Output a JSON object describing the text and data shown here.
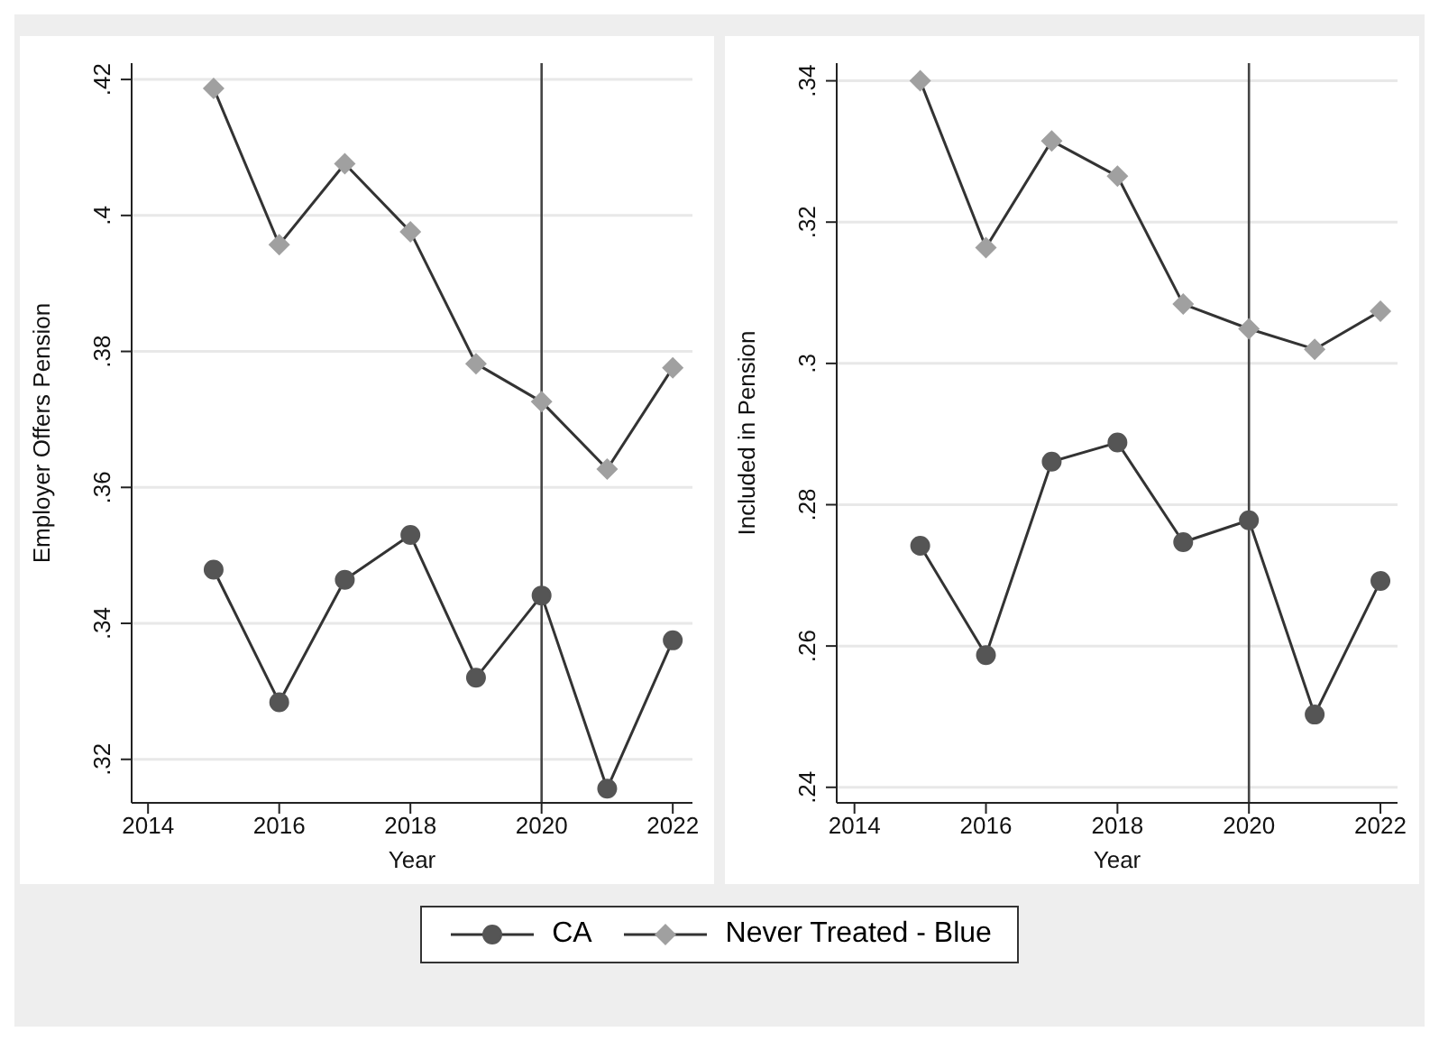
{
  "chart_data": [
    {
      "type": "line",
      "xlabel": "Year",
      "ylabel": "Employer Offers Pension",
      "x": [
        2015,
        2016,
        2017,
        2018,
        2019,
        2020,
        2021,
        2022
      ],
      "xlim": [
        2013.75,
        2022.3
      ],
      "xticks": [
        2014,
        2016,
        2018,
        2020,
        2022
      ],
      "ylim": [
        0.3136,
        0.4224
      ],
      "yticks": [
        {
          "value": 0.32,
          "label": ".32"
        },
        {
          "value": 0.34,
          "label": ".34"
        },
        {
          "value": 0.36,
          "label": ".36"
        },
        {
          "value": 0.38,
          "label": ".38"
        },
        {
          "value": 0.4,
          "label": ".4"
        },
        {
          "value": 0.42,
          "label": ".42"
        }
      ],
      "grid": "y",
      "legend": "bottom",
      "ref_lines": [
        {
          "axis": "x",
          "value": 2020,
          "color": "#444444"
        }
      ],
      "series": [
        {
          "name": "CA",
          "color": "#555555",
          "marker": "circle",
          "values": [
            0.3479,
            0.3284,
            0.3464,
            0.353,
            0.332,
            0.3441,
            0.3157,
            0.3375
          ]
        },
        {
          "name": "Never Treated - Blue",
          "color": "#a0a0a0",
          "marker": "diamond",
          "values": [
            0.4187,
            0.3957,
            0.4076,
            0.3976,
            0.3782,
            0.3726,
            0.3627,
            0.3776
          ]
        }
      ]
    },
    {
      "type": "line",
      "xlabel": "Year",
      "ylabel": "Included in Pension",
      "x": [
        2015,
        2016,
        2017,
        2018,
        2019,
        2020,
        2021,
        2022
      ],
      "xlim": [
        2013.73,
        2022.26
      ],
      "xticks": [
        2014,
        2016,
        2018,
        2020,
        2022
      ],
      "ylim": [
        0.2378,
        0.3425
      ],
      "yticks": [
        {
          "value": 0.24,
          "label": ".24"
        },
        {
          "value": 0.26,
          "label": ".26"
        },
        {
          "value": 0.28,
          "label": ".28"
        },
        {
          "value": 0.3,
          "label": ".3"
        },
        {
          "value": 0.32,
          "label": ".32"
        },
        {
          "value": 0.34,
          "label": ".34"
        }
      ],
      "grid": "y",
      "ref_lines": [
        {
          "axis": "x",
          "value": 2020,
          "color": "#444444"
        }
      ],
      "series": [
        {
          "color": "#555555",
          "marker": "circle",
          "values": [
            0.2742,
            0.2587,
            0.2861,
            0.2888,
            0.2747,
            0.2778,
            0.2503,
            0.2692
          ]
        },
        {
          "color": "#a0a0a0",
          "marker": "diamond",
          "values": [
            0.34,
            0.3164,
            0.3315,
            0.3265,
            0.3084,
            0.3049,
            0.302,
            0.3074
          ]
        }
      ]
    }
  ]
}
